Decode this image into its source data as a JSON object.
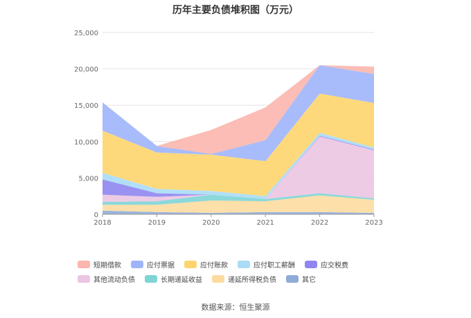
{
  "chart_data": {
    "type": "area",
    "stacked": true,
    "title": "历年主要负债堆积图（万元）",
    "x": [
      "2018",
      "2019",
      "2020",
      "2021",
      "2022",
      "2023"
    ],
    "ylim": [
      0,
      25000
    ],
    "yticks": [
      "0",
      "5,000",
      "10,000",
      "15,000",
      "20,000",
      "25,000"
    ],
    "grid": true,
    "legend_position": "bottom",
    "series": [
      {
        "name": "其它",
        "color": "#8facd8",
        "values": [
          500,
          300,
          200,
          300,
          300,
          200
        ]
      },
      {
        "name": "递延所得税负债",
        "color": "#fddba0",
        "values": [
          800,
          1000,
          1700,
          1500,
          2300,
          1800
        ]
      },
      {
        "name": "长期递延收益",
        "color": "#7fd4d6",
        "values": [
          400,
          500,
          800,
          300,
          300,
          200
        ]
      },
      {
        "name": "其他流动负债",
        "color": "#ebc5e2",
        "values": [
          1000,
          600,
          0,
          0,
          7800,
          6600
        ]
      },
      {
        "name": "应交税费",
        "color": "#8f86f0",
        "values": [
          2100,
          500,
          0,
          0,
          100,
          100
        ]
      },
      {
        "name": "应付职工薪酬",
        "color": "#a9dcf7",
        "values": [
          900,
          600,
          500,
          400,
          400,
          300
        ]
      },
      {
        "name": "应付账款",
        "color": "#fed56d",
        "values": [
          5800,
          5000,
          5000,
          4800,
          5400,
          6100
        ]
      },
      {
        "name": "应付票据",
        "color": "#9fb5fb",
        "values": [
          3900,
          900,
          100,
          2900,
          3900,
          4000
        ]
      },
      {
        "name": "短期借款",
        "color": "#fbb6ad",
        "values": [
          0,
          0,
          3300,
          4500,
          0,
          1000
        ]
      }
    ],
    "legend_order": [
      "短期借款",
      "应付票据",
      "应付账款",
      "应付职工薪酬",
      "应交税费",
      "其他流动负债",
      "长期递延收益",
      "递延所得税负债",
      "其它"
    ]
  },
  "source": "数据来源：恒生聚源"
}
